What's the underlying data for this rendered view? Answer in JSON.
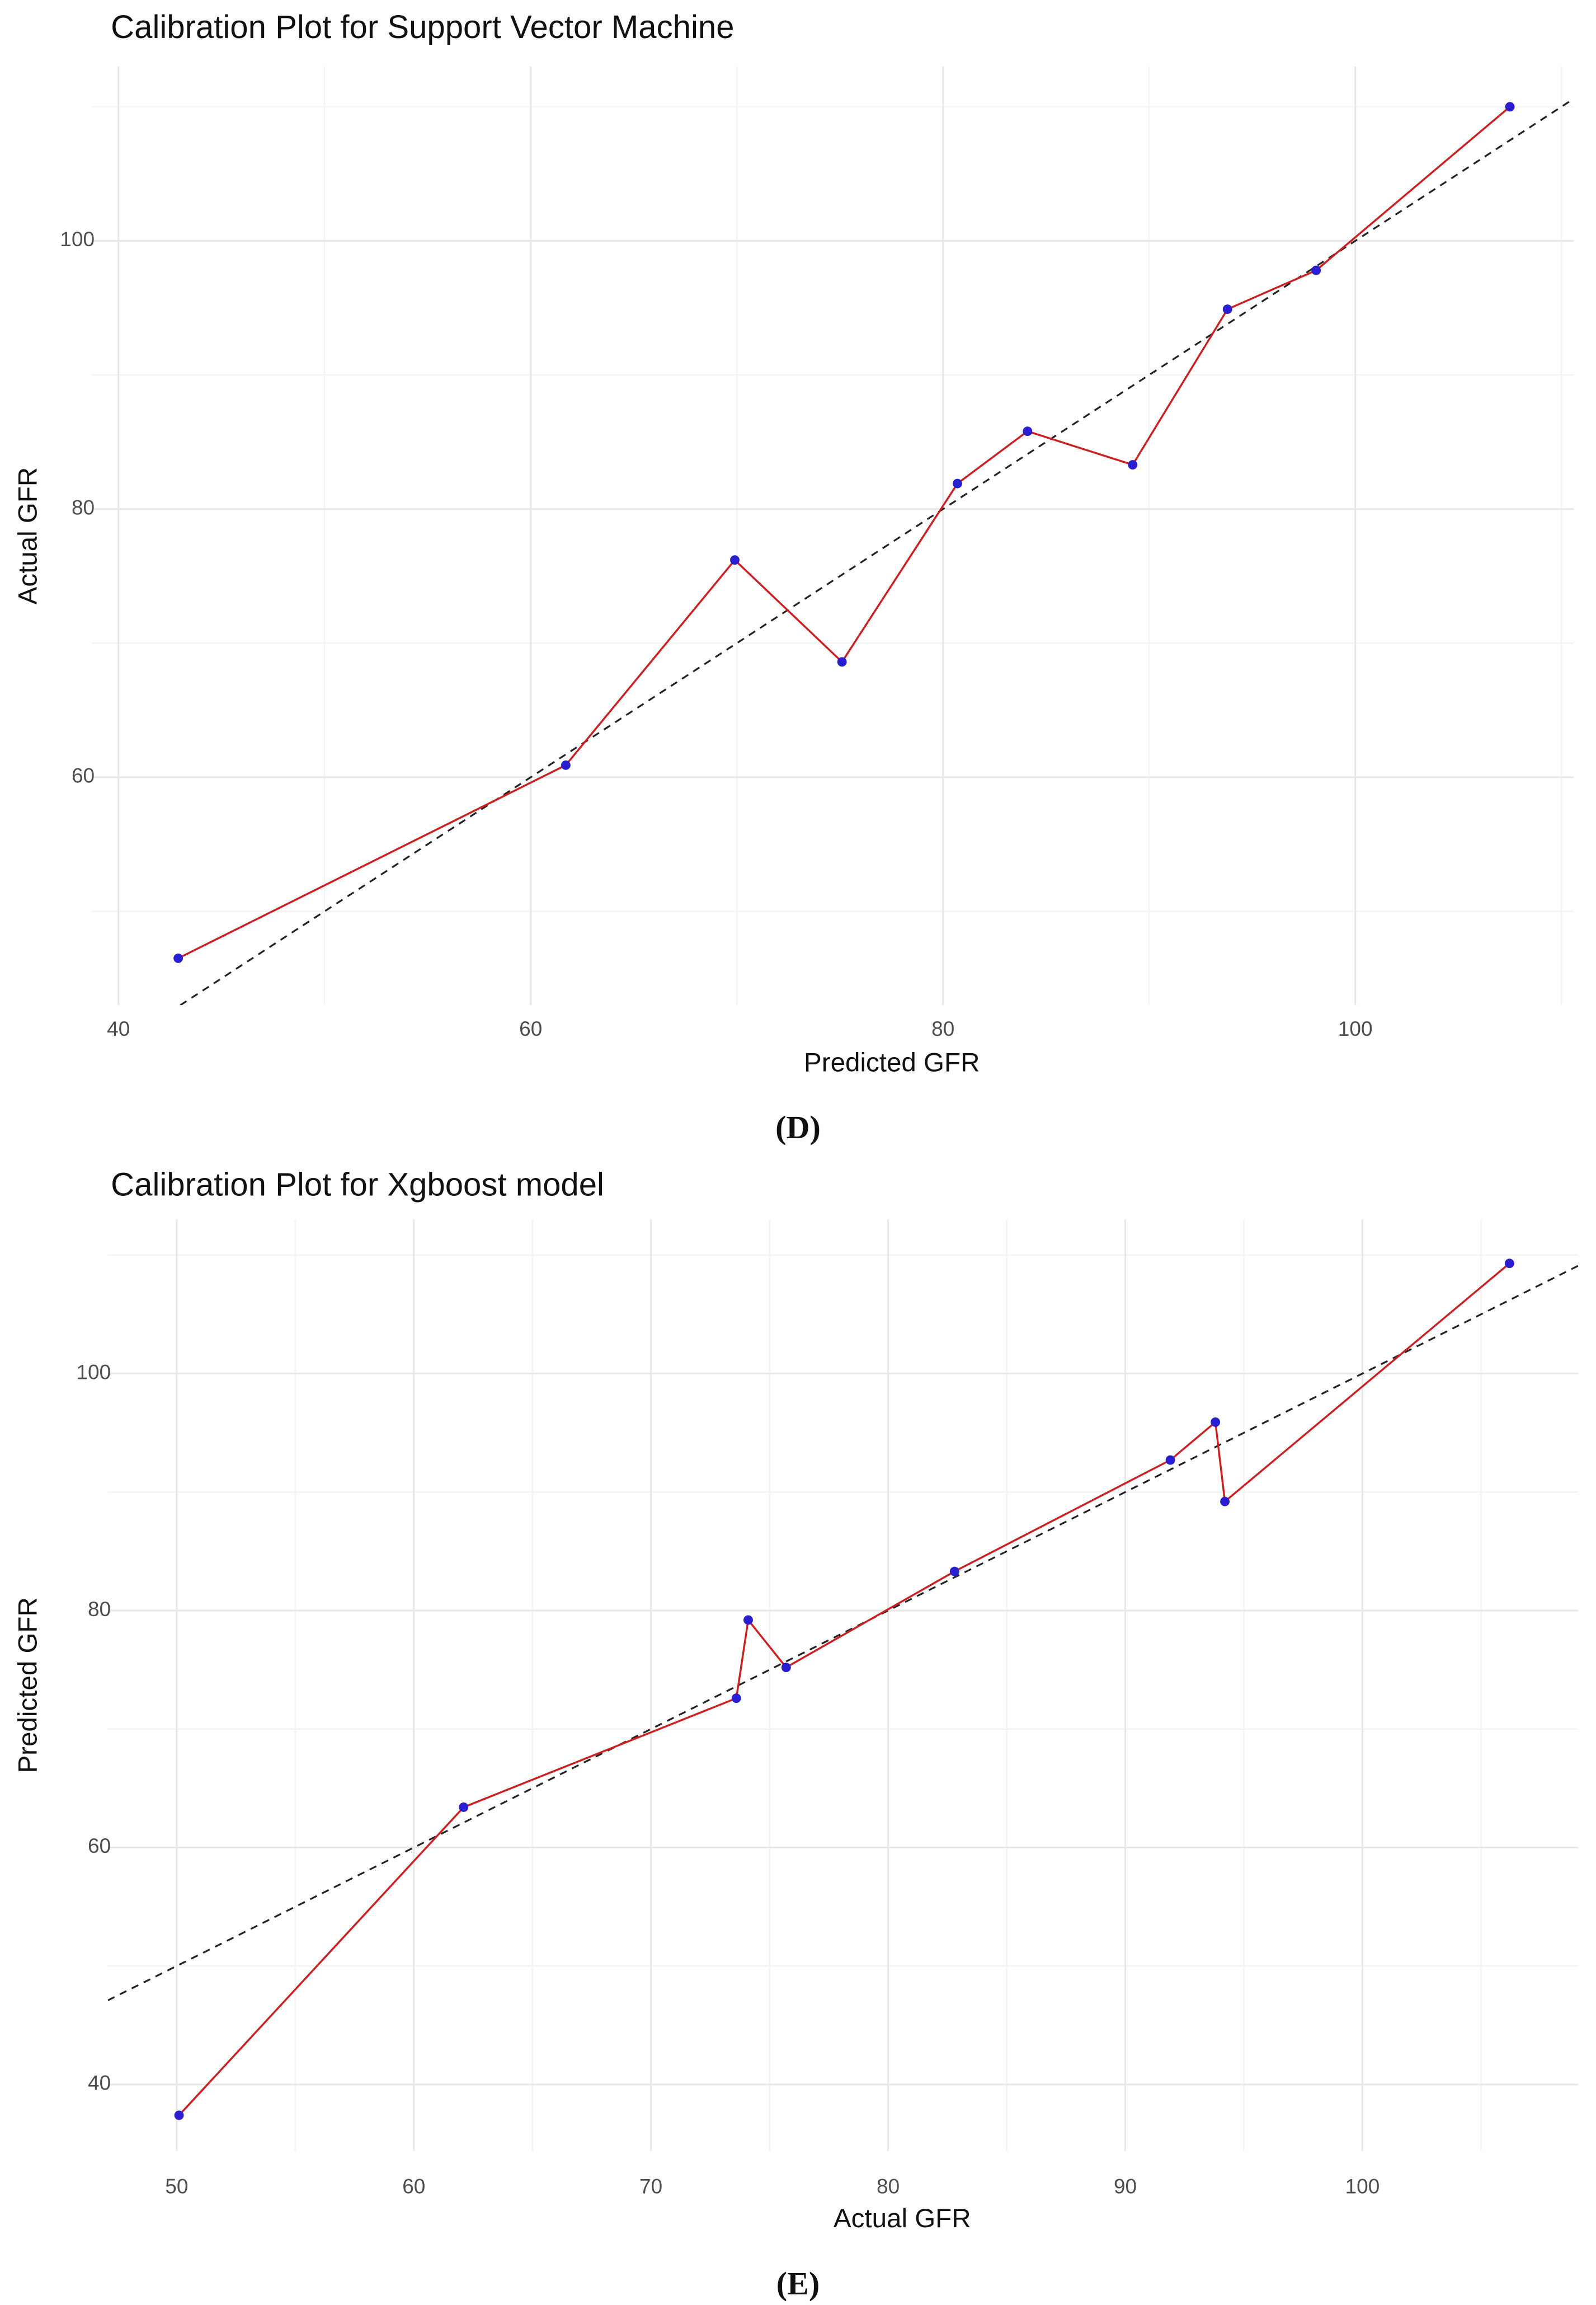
{
  "chart_data": [
    {
      "type": "line",
      "title": "Calibration Plot for Support Vector Machine",
      "x_label": "Predicted GFR",
      "y_label": "Actual GFR",
      "caption": "(D)",
      "x": [
        42.9,
        61.7,
        69.9,
        75.1,
        80.7,
        84.1,
        89.2,
        93.8,
        98.1,
        107.5
      ],
      "values": [
        46.5,
        60.9,
        76.2,
        68.6,
        81.9,
        85.8,
        83.3,
        94.9,
        97.8,
        110.0
      ],
      "line_color": "#cc1f1f",
      "point_color": "#2a1fd0",
      "xlim": [
        38.7,
        110.6
      ],
      "ylim": [
        43.0,
        113.0
      ],
      "xticks": [
        40,
        60,
        80,
        100
      ],
      "yticks": [
        60,
        80,
        100
      ],
      "grid": true,
      "minor_grid": true
    },
    {
      "type": "line",
      "title": "Calibration Plot for Xgboost model",
      "x_label": "Actual GFR",
      "y_label": "Predicted GFR",
      "caption": "(E)",
      "x": [
        50.1,
        62.1,
        73.6,
        74.1,
        75.7,
        82.8,
        91.9,
        93.8,
        94.2,
        106.2
      ],
      "values": [
        37.4,
        63.4,
        72.6,
        79.2,
        75.2,
        83.3,
        92.7,
        95.9,
        89.2,
        109.3
      ],
      "line_color": "#cc1f1f",
      "point_color": "#2a1fd0",
      "xlim": [
        47.1,
        109.1
      ],
      "ylim": [
        34.4,
        113.0
      ],
      "xticks": [
        50,
        60,
        70,
        80,
        90,
        100
      ],
      "yticks": [
        40,
        60,
        80,
        100
      ],
      "grid": true,
      "minor_grid": true
    }
  ]
}
